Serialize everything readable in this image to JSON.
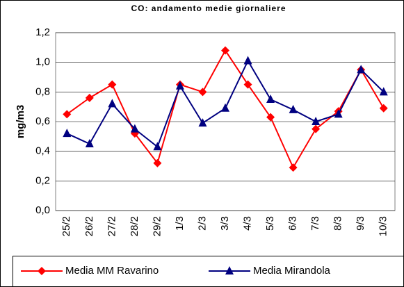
{
  "chart_data": {
    "type": "line",
    "title": "CO: andamento medie giornaliere",
    "y_label": "mg/m3",
    "categories": [
      "25/2",
      "26/2",
      "27/2",
      "28/2",
      "29/2",
      "1/3",
      "2/3",
      "3/3",
      "4/3",
      "5/3",
      "6/3",
      "7/3",
      "8/3",
      "9/3",
      "10/3"
    ],
    "series": [
      {
        "name": "Media MM Ravarino",
        "color": "#ff0000",
        "marker": "diamond",
        "values": [
          0.65,
          0.76,
          0.85,
          0.52,
          0.32,
          0.85,
          0.8,
          1.08,
          0.85,
          0.63,
          0.29,
          0.55,
          0.67,
          0.95,
          0.69
        ]
      },
      {
        "name": "Media Mirandola",
        "color": "#000080",
        "marker": "triangle",
        "values": [
          0.52,
          0.45,
          0.72,
          0.55,
          0.43,
          0.84,
          0.59,
          0.69,
          1.01,
          0.75,
          0.68,
          0.6,
          0.65,
          0.95,
          0.8
        ]
      }
    ],
    "ylim": [
      0,
      1.2
    ],
    "yticks": [
      {
        "value": 0,
        "label": "0,0"
      },
      {
        "value": 0.2,
        "label": "0,2"
      },
      {
        "value": 0.4,
        "label": "0,4"
      },
      {
        "value": 0.6,
        "label": "0,6"
      },
      {
        "value": 0.8,
        "label": "0,8"
      },
      {
        "value": 1.0,
        "label": "1,0"
      },
      {
        "value": 1.2,
        "label": "1,2"
      }
    ],
    "grid": true,
    "legend": "bottom"
  }
}
